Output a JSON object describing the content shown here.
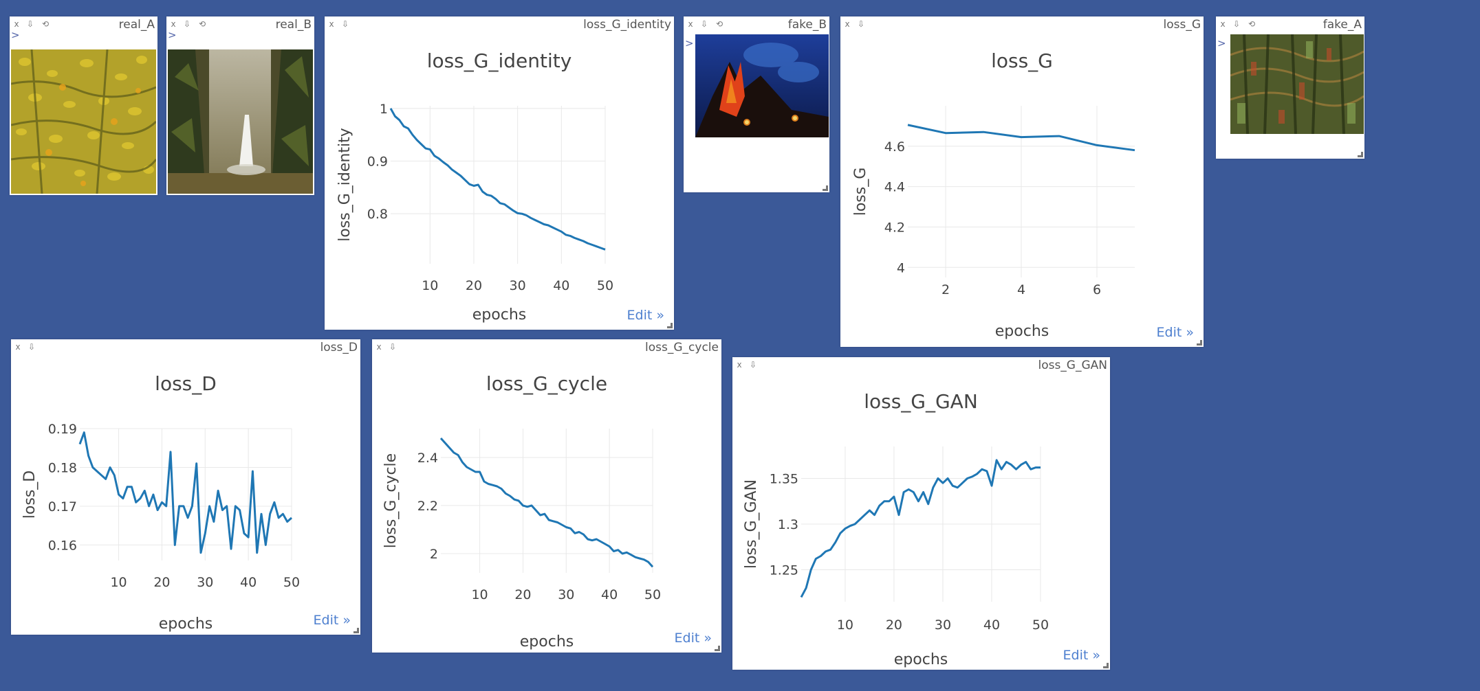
{
  "ui": {
    "close_label": "x",
    "download_label": "⇩",
    "reset_label": "⟲",
    "expand_label": ">",
    "edit_label": "Edit »"
  },
  "panes": {
    "real_A": {
      "title": "real_A"
    },
    "real_B": {
      "title": "real_B"
    },
    "fake_B": {
      "title": "fake_B"
    },
    "fake_A": {
      "title": "fake_A"
    },
    "loss_G_identity": {
      "title": "loss_G_identity"
    },
    "loss_G": {
      "title": "loss_G"
    },
    "loss_D": {
      "title": "loss_D"
    },
    "loss_G_cycle": {
      "title": "loss_G_cycle"
    },
    "loss_G_GAN": {
      "title": "loss_G_GAN"
    }
  },
  "chart_data": [
    {
      "id": "loss_G_identity",
      "type": "line",
      "title": "loss_G_identity",
      "xlabel": "epochs",
      "ylabel": "loss_G_identity",
      "xlim": [
        1,
        50
      ],
      "ylim": [
        0.705,
        1.005
      ],
      "xticks": [
        10,
        20,
        30,
        40,
        50
      ],
      "yticks": [
        0.8,
        0.9,
        1
      ],
      "ytick_labels": [
        "0.8",
        "0.9",
        "1"
      ],
      "grid": true,
      "color": "#1f77b4",
      "x": [
        1,
        2,
        3,
        4,
        5,
        6,
        7,
        8,
        9,
        10,
        11,
        12,
        13,
        14,
        15,
        16,
        17,
        18,
        19,
        20,
        21,
        22,
        23,
        24,
        25,
        26,
        27,
        28,
        29,
        30,
        31,
        32,
        33,
        34,
        35,
        36,
        37,
        38,
        39,
        40,
        41,
        42,
        43,
        44,
        45,
        46,
        47,
        48,
        49,
        50
      ],
      "values": [
        1.0,
        0.985,
        0.978,
        0.966,
        0.962,
        0.95,
        0.94,
        0.932,
        0.924,
        0.922,
        0.91,
        0.905,
        0.898,
        0.892,
        0.884,
        0.878,
        0.872,
        0.864,
        0.856,
        0.853,
        0.855,
        0.842,
        0.836,
        0.834,
        0.828,
        0.82,
        0.818,
        0.812,
        0.806,
        0.801,
        0.8,
        0.797,
        0.792,
        0.788,
        0.784,
        0.78,
        0.778,
        0.774,
        0.77,
        0.766,
        0.76,
        0.758,
        0.754,
        0.751,
        0.748,
        0.744,
        0.741,
        0.738,
        0.735,
        0.732
      ]
    },
    {
      "id": "loss_G",
      "type": "line",
      "title": "loss_G",
      "xlabel": "epochs",
      "ylabel": "loss_G",
      "xlim": [
        1,
        7
      ],
      "ylim": [
        3.95,
        4.8
      ],
      "xticks": [
        2,
        4,
        6
      ],
      "yticks": [
        4,
        4.2,
        4.4,
        4.6
      ],
      "ytick_labels": [
        "4",
        "4.2",
        "4.4",
        "4.6"
      ],
      "grid": true,
      "color": "#1f77b4",
      "x": [
        1,
        2,
        3,
        4,
        5,
        6,
        7
      ],
      "values": [
        4.705,
        4.665,
        4.67,
        4.645,
        4.65,
        4.605,
        4.58
      ]
    },
    {
      "id": "loss_D",
      "type": "line",
      "title": "loss_D",
      "xlabel": "epochs",
      "ylabel": "loss_D",
      "xlim": [
        1,
        50
      ],
      "ylim": [
        0.156,
        0.19
      ],
      "xticks": [
        10,
        20,
        30,
        40,
        50
      ],
      "yticks": [
        0.16,
        0.17,
        0.18,
        0.19
      ],
      "ytick_labels": [
        "0.16",
        "0.17",
        "0.18",
        "0.19"
      ],
      "grid": true,
      "color": "#1f77b4",
      "x": [
        1,
        2,
        3,
        4,
        5,
        6,
        7,
        8,
        9,
        10,
        11,
        12,
        13,
        14,
        15,
        16,
        17,
        18,
        19,
        20,
        21,
        22,
        23,
        24,
        25,
        26,
        27,
        28,
        29,
        30,
        31,
        32,
        33,
        34,
        35,
        36,
        37,
        38,
        39,
        40,
        41,
        42,
        43,
        44,
        45,
        46,
        47,
        48,
        49,
        50
      ],
      "values": [
        0.186,
        0.189,
        0.183,
        0.18,
        0.179,
        0.178,
        0.177,
        0.18,
        0.178,
        0.173,
        0.172,
        0.175,
        0.175,
        0.171,
        0.172,
        0.174,
        0.17,
        0.173,
        0.169,
        0.171,
        0.17,
        0.184,
        0.16,
        0.17,
        0.17,
        0.167,
        0.17,
        0.181,
        0.158,
        0.163,
        0.17,
        0.166,
        0.174,
        0.169,
        0.17,
        0.159,
        0.17,
        0.169,
        0.163,
        0.162,
        0.179,
        0.158,
        0.168,
        0.16,
        0.168,
        0.171,
        0.167,
        0.168,
        0.166,
        0.167
      ]
    },
    {
      "id": "loss_G_cycle",
      "type": "line",
      "title": "loss_G_cycle",
      "xlabel": "epochs",
      "ylabel": "loss_G_cycle",
      "xlim": [
        1,
        50
      ],
      "ylim": [
        1.92,
        2.52
      ],
      "xticks": [
        10,
        20,
        30,
        40,
        50
      ],
      "yticks": [
        2,
        2.2,
        2.4
      ],
      "ytick_labels": [
        "2",
        "2.2",
        "2.4"
      ],
      "grid": true,
      "color": "#1f77b4",
      "x": [
        1,
        2,
        3,
        4,
        5,
        6,
        7,
        8,
        9,
        10,
        11,
        12,
        13,
        14,
        15,
        16,
        17,
        18,
        19,
        20,
        21,
        22,
        23,
        24,
        25,
        26,
        27,
        28,
        29,
        30,
        31,
        32,
        33,
        34,
        35,
        36,
        37,
        38,
        39,
        40,
        41,
        42,
        43,
        44,
        45,
        46,
        47,
        48,
        49,
        50
      ],
      "values": [
        2.48,
        2.46,
        2.44,
        2.42,
        2.41,
        2.38,
        2.36,
        2.35,
        2.34,
        2.34,
        2.3,
        2.29,
        2.285,
        2.28,
        2.27,
        2.25,
        2.24,
        2.225,
        2.22,
        2.2,
        2.195,
        2.2,
        2.18,
        2.16,
        2.165,
        2.14,
        2.135,
        2.13,
        2.12,
        2.11,
        2.105,
        2.085,
        2.09,
        2.08,
        2.06,
        2.055,
        2.06,
        2.05,
        2.04,
        2.03,
        2.01,
        2.015,
        2.0,
        2.005,
        1.995,
        1.985,
        1.98,
        1.975,
        1.965,
        1.945
      ]
    },
    {
      "id": "loss_G_GAN",
      "type": "line",
      "title": "loss_G_GAN",
      "xlabel": "epochs",
      "ylabel": "loss_G_GAN",
      "xlim": [
        1,
        50
      ],
      "ylim": [
        1.215,
        1.385
      ],
      "xticks": [
        10,
        20,
        30,
        40,
        50
      ],
      "yticks": [
        1.25,
        1.3,
        1.35
      ],
      "ytick_labels": [
        "1.25",
        "1.3",
        "1.35"
      ],
      "grid": true,
      "color": "#1f77b4",
      "x": [
        1,
        2,
        3,
        4,
        5,
        6,
        7,
        8,
        9,
        10,
        11,
        12,
        13,
        14,
        15,
        16,
        17,
        18,
        19,
        20,
        21,
        22,
        23,
        24,
        25,
        26,
        27,
        28,
        29,
        30,
        31,
        32,
        33,
        34,
        35,
        36,
        37,
        38,
        39,
        40,
        41,
        42,
        43,
        44,
        45,
        46,
        47,
        48,
        49,
        50
      ],
      "values": [
        1.22,
        1.23,
        1.25,
        1.262,
        1.265,
        1.27,
        1.272,
        1.28,
        1.29,
        1.295,
        1.298,
        1.3,
        1.305,
        1.31,
        1.315,
        1.31,
        1.32,
        1.325,
        1.325,
        1.33,
        1.31,
        1.335,
        1.338,
        1.335,
        1.325,
        1.335,
        1.322,
        1.34,
        1.35,
        1.345,
        1.35,
        1.342,
        1.34,
        1.345,
        1.35,
        1.352,
        1.355,
        1.36,
        1.358,
        1.342,
        1.37,
        1.36,
        1.368,
        1.365,
        1.36,
        1.365,
        1.368,
        1.36,
        1.362,
        1.362
      ]
    }
  ]
}
